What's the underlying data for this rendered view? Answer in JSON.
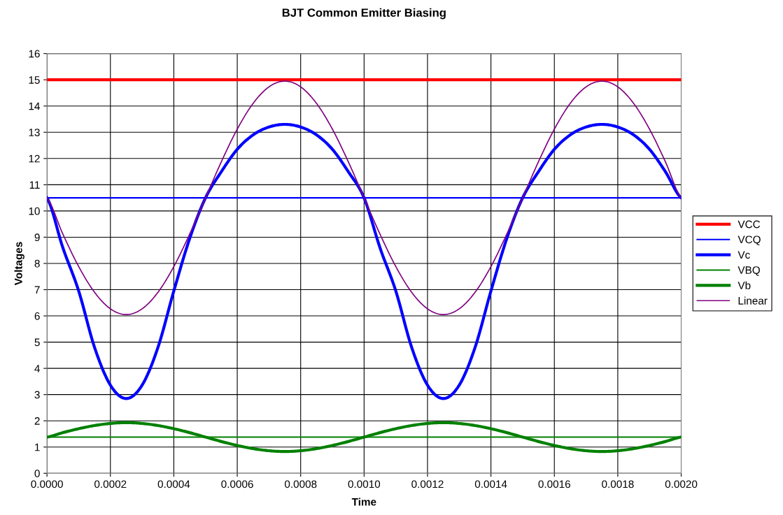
{
  "chart_data": {
    "type": "line",
    "title": "BJT Common Emitter Biasing",
    "xlabel": "Time",
    "ylabel": "Voltages",
    "x": [
      0,
      5e-05,
      0.0001,
      0.00015,
      0.0002,
      0.00025,
      0.0003,
      0.00035,
      0.0004,
      0.00045,
      0.0005,
      0.00055,
      0.0006,
      0.00065,
      0.0007,
      0.00075,
      0.0008,
      0.00085,
      0.0009,
      0.00095,
      0.001,
      0.00105,
      0.0011,
      0.00115,
      0.0012,
      0.00125,
      0.0013,
      0.00135,
      0.0014,
      0.00145,
      0.0015,
      0.00155,
      0.0016,
      0.00165,
      0.0017,
      0.00175,
      0.0018,
      0.00185,
      0.0019,
      0.00195,
      0.002
    ],
    "series": [
      {
        "name": "VCC",
        "color": "#ff0000",
        "values": [
          15,
          15,
          15,
          15,
          15,
          15,
          15,
          15,
          15,
          15,
          15,
          15,
          15,
          15,
          15,
          15,
          15,
          15,
          15,
          15,
          15,
          15,
          15,
          15,
          15,
          15,
          15,
          15,
          15,
          15,
          15,
          15,
          15,
          15,
          15,
          15,
          15,
          15,
          15,
          15,
          15
        ]
      },
      {
        "name": "VCQ",
        "color": "#0000ff",
        "values": [
          10.5,
          10.5,
          10.5,
          10.5,
          10.5,
          10.5,
          10.5,
          10.5,
          10.5,
          10.5,
          10.5,
          10.5,
          10.5,
          10.5,
          10.5,
          10.5,
          10.5,
          10.5,
          10.5,
          10.5,
          10.5,
          10.5,
          10.5,
          10.5,
          10.5,
          10.5,
          10.5,
          10.5,
          10.5,
          10.5,
          10.5,
          10.5,
          10.5,
          10.5,
          10.5,
          10.5,
          10.5,
          10.5,
          10.5,
          10.5,
          10.5
        ]
      },
      {
        "name": "Vc",
        "color": "#0000ff",
        "values": [
          10.5,
          8.6,
          6.95,
          4.8,
          3.36,
          2.85,
          3.36,
          4.8,
          6.95,
          8.95,
          10.5,
          11.5,
          12.35,
          12.9,
          13.2,
          13.3,
          13.2,
          12.9,
          12.35,
          11.5,
          10.5,
          8.6,
          6.95,
          4.8,
          3.36,
          2.85,
          3.36,
          4.8,
          6.95,
          8.95,
          10.5,
          11.5,
          12.35,
          12.9,
          13.2,
          13.3,
          13.2,
          12.9,
          12.35,
          11.5,
          10.5
        ]
      },
      {
        "name": "VBQ",
        "color": "#008000",
        "values": [
          1.38,
          1.38,
          1.38,
          1.38,
          1.38,
          1.38,
          1.38,
          1.38,
          1.38,
          1.38,
          1.38,
          1.38,
          1.38,
          1.38,
          1.38,
          1.38,
          1.38,
          1.38,
          1.38,
          1.38,
          1.38,
          1.38,
          1.38,
          1.38,
          1.38,
          1.38,
          1.38,
          1.38,
          1.38,
          1.38,
          1.38,
          1.38,
          1.38,
          1.38,
          1.38,
          1.38,
          1.38,
          1.38,
          1.38,
          1.38,
          1.38
        ]
      },
      {
        "name": "Vb",
        "color": "#008000",
        "values": [
          1.38,
          1.55,
          1.7,
          1.82,
          1.9,
          1.93,
          1.9,
          1.82,
          1.7,
          1.55,
          1.38,
          1.21,
          1.06,
          0.94,
          0.86,
          0.83,
          0.86,
          0.94,
          1.06,
          1.21,
          1.38,
          1.55,
          1.7,
          1.82,
          1.9,
          1.93,
          1.9,
          1.82,
          1.7,
          1.55,
          1.38,
          1.21,
          1.06,
          0.94,
          0.86,
          0.83,
          0.86,
          0.94,
          1.06,
          1.21,
          1.38
        ]
      },
      {
        "name": "Linear",
        "color": "#800080",
        "values": [
          10.5,
          9.12,
          7.88,
          6.9,
          6.27,
          6.05,
          6.27,
          6.9,
          7.88,
          9.12,
          10.5,
          11.88,
          13.12,
          14.1,
          14.73,
          14.95,
          14.73,
          14.1,
          13.12,
          11.88,
          10.5,
          9.12,
          7.88,
          6.9,
          6.27,
          6.05,
          6.27,
          6.9,
          7.88,
          9.12,
          10.5,
          11.88,
          13.12,
          14.1,
          14.73,
          14.95,
          14.73,
          14.1,
          13.12,
          11.88,
          10.5
        ]
      }
    ],
    "xlim": [
      0,
      0.002
    ],
    "ylim": [
      0,
      16
    ],
    "xticks": [
      {
        "value": 0,
        "label": "0.0000"
      },
      {
        "value": 0.0002,
        "label": "0.0002"
      },
      {
        "value": 0.0004,
        "label": "0.0004"
      },
      {
        "value": 0.0006,
        "label": "0.0006"
      },
      {
        "value": 0.0008,
        "label": "0.0008"
      },
      {
        "value": 0.001,
        "label": "0.0010"
      },
      {
        "value": 0.0012,
        "label": "0.0012"
      },
      {
        "value": 0.0014,
        "label": "0.0014"
      },
      {
        "value": 0.0016,
        "label": "0.0016"
      },
      {
        "value": 0.0018,
        "label": "0.0018"
      },
      {
        "value": 0.002,
        "label": "0.0020"
      }
    ],
    "yticks": [
      0,
      1,
      2,
      3,
      4,
      5,
      6,
      7,
      8,
      9,
      10,
      11,
      12,
      13,
      14,
      15,
      16
    ],
    "grid": true,
    "legend": "right",
    "marker": "none",
    "line_style": "solid"
  }
}
